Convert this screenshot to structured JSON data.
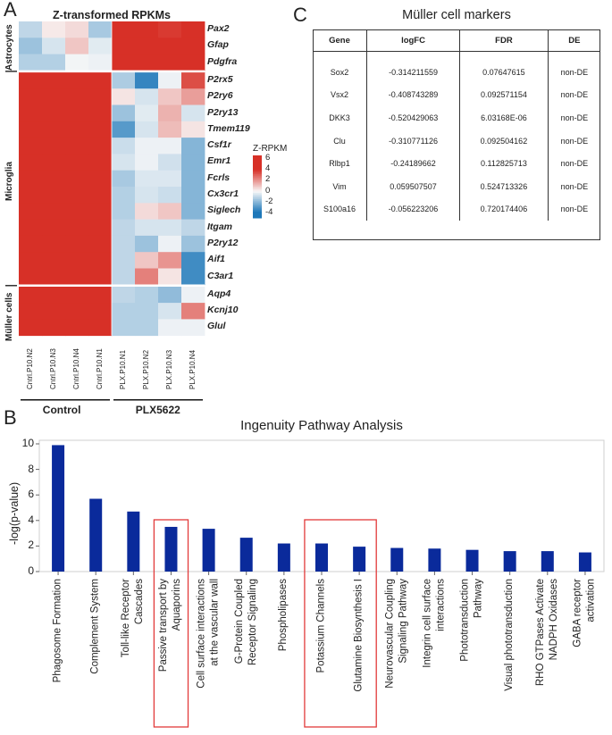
{
  "panels": {
    "a": "A",
    "b": "B",
    "c": "C"
  },
  "heatmap": {
    "title": "Z-transformed RPKMs",
    "genes": [
      "Pax2",
      "Gfap",
      "Pdgfra",
      "P2rx5",
      "P2ry6",
      "P2ry13",
      "Tmem119",
      "Csf1r",
      "Emr1",
      "Fcrls",
      "Cx3cr1",
      "Siglech",
      "Itgam",
      "P2ry12",
      "Aif1",
      "C3ar1",
      "Aqp4",
      "Kcnj10",
      "Glul"
    ],
    "samples": [
      "Cntrl.P10.N2",
      "Cntrl.P10.N3",
      "Cntrl.P10.N4",
      "Cntrl.P10.N1",
      "PLX.P10.N1",
      "PLX.P10.N2",
      "PLX.P10.N3",
      "PLX.P10.N4"
    ],
    "row_groups": [
      {
        "label": "Astrocytes",
        "start": 0,
        "end": 2
      },
      {
        "label": "Microglia",
        "start": 3,
        "end": 15
      },
      {
        "label": "Müller cells",
        "start": 16,
        "end": 18
      }
    ],
    "col_groups": [
      {
        "label": "Control",
        "start": 0,
        "end": 3
      },
      {
        "label": "PLX5622",
        "start": 4,
        "end": 7
      }
    ],
    "values": [
      [
        -1.0,
        0.3,
        0.6,
        -1.4,
        4.8,
        5.0,
        3.8,
        4.2
      ],
      [
        -1.6,
        -0.6,
        1.0,
        -0.4,
        4.8,
        4.8,
        4.6,
        4.6
      ],
      [
        -1.2,
        -1.2,
        -0.1,
        -0.2,
        4.6,
        4.8,
        4.8,
        4.6
      ],
      [
        4.6,
        4.6,
        4.4,
        4.6,
        -1.3,
        -3.4,
        -0.2,
        3.4
      ],
      [
        4.7,
        4.6,
        4.8,
        4.8,
        0.4,
        -0.6,
        1.0,
        1.8
      ],
      [
        4.4,
        4.6,
        5.0,
        4.8,
        -1.6,
        -0.4,
        1.4,
        -0.6
      ],
      [
        4.6,
        5.0,
        4.6,
        4.8,
        -2.8,
        -0.6,
        1.2,
        0.4
      ],
      [
        4.6,
        4.6,
        4.6,
        4.6,
        -0.8,
        -0.2,
        -0.2,
        -2.0
      ],
      [
        4.6,
        4.6,
        4.6,
        4.8,
        -0.6,
        -0.2,
        -0.7,
        -2.0
      ],
      [
        4.6,
        4.6,
        4.6,
        4.6,
        -1.4,
        -0.5,
        -0.5,
        -2.0
      ],
      [
        4.6,
        4.6,
        4.6,
        4.6,
        -1.2,
        -0.6,
        -0.8,
        -2.0
      ],
      [
        4.6,
        4.6,
        4.6,
        4.6,
        -1.2,
        0.6,
        1.0,
        -2.0
      ],
      [
        4.6,
        4.6,
        4.6,
        4.6,
        -1.0,
        -0.6,
        -0.6,
        -1.0
      ],
      [
        4.6,
        4.6,
        4.6,
        4.6,
        -1.0,
        -1.6,
        -0.2,
        -1.6
      ],
      [
        4.6,
        4.6,
        4.6,
        4.4,
        -1.0,
        1.0,
        2.0,
        -3.2
      ],
      [
        4.6,
        4.6,
        4.2,
        4.6,
        -1.0,
        2.4,
        0.4,
        -3.2
      ],
      [
        4.6,
        4.4,
        4.6,
        4.6,
        -1.0,
        -1.2,
        -1.8,
        -0.2
      ],
      [
        4.6,
        4.6,
        4.4,
        4.6,
        -1.2,
        -1.2,
        -0.6,
        2.4
      ],
      [
        4.6,
        4.6,
        4.4,
        5.0,
        -1.2,
        -1.2,
        -0.2,
        -0.2
      ]
    ],
    "legend": {
      "title": "Z-RPKM",
      "ticks": [
        "6",
        "4",
        "2",
        "0",
        "-2",
        "-4"
      ],
      "min": -5,
      "max": 6.5
    }
  },
  "table": {
    "title": "Müller cell markers",
    "headers": [
      "Gene",
      "logFC",
      "FDR",
      "DE"
    ],
    "rows": [
      [
        "Sox2",
        "-0.314211559",
        "0.07647615",
        "non-DE"
      ],
      [
        "Vsx2",
        "-0.408743289",
        "0.092571154",
        "non-DE"
      ],
      [
        "DKK3",
        "-0.520429063",
        "6.03168E-06",
        "non-DE"
      ],
      [
        "Clu",
        "-0.310771126",
        "0.092504162",
        "non-DE"
      ],
      [
        "Rlbp1",
        "-0.24189662",
        "0.112825713",
        "non-DE"
      ],
      [
        "Vim",
        "0.059507507",
        "0.524713326",
        "non-DE"
      ],
      [
        "S100a16",
        "-0.056223206",
        "0.720174406",
        "non-DE"
      ]
    ]
  },
  "chart_data": {
    "type": "bar",
    "title": "Ingenuity Pathway Analysis",
    "xlabel": "",
    "ylabel": "-log(p-value)",
    "ylim": [
      0,
      10
    ],
    "yticks": [
      0,
      2,
      4,
      6,
      8,
      10
    ],
    "grid": false,
    "bar_color": "#0a2a9b",
    "highlight_color": "#e23a3a",
    "categories": [
      "Phagosome Formation",
      "Complement System",
      "Toll-like Receptor\nCascades",
      "Passive transport by\nAquaporins",
      "Cell surface interactions\nat the vascular wall",
      "G-Protein Coupled\nReceptor Signaling",
      "Phospholipases",
      "Potassium Channels",
      "Glutamine Biosynthesis I",
      "Neurovascular Coupling\nSignaling Pathway",
      "Integrin cell surface\ninteractions",
      "Phototransduction\nPathway",
      "Visual phototransduction",
      "RHO GTPases Activate\nNADPH Oxidases",
      "GABA receptor\nactivation"
    ],
    "values": [
      9.9,
      5.7,
      4.7,
      3.5,
      3.35,
      2.65,
      2.2,
      2.2,
      1.95,
      1.85,
      1.8,
      1.7,
      1.6,
      1.6,
      1.5
    ],
    "highlight_groups": [
      [
        3
      ],
      [
        7,
        8
      ]
    ]
  }
}
